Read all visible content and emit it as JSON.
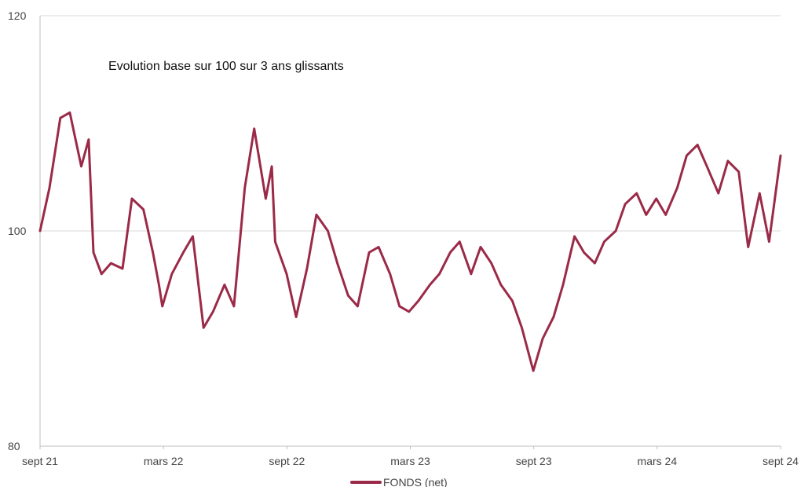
{
  "chart_data": {
    "type": "line",
    "title": "Evolution base sur 100 sur 3 ans glissants",
    "xlabel": "",
    "ylabel": "",
    "ylim": [
      80,
      120
    ],
    "yticks": [
      "80",
      "100",
      "120"
    ],
    "x_ticks": [
      "sept 21",
      "mars 22",
      "sept 22",
      "mars 23",
      "sept 23",
      "mars 24",
      "sept 24"
    ],
    "x_range": [
      "2021-09",
      "2024-09"
    ],
    "grid": true,
    "legend": "bottom-center",
    "colors": {
      "series": "#9B2A48",
      "grid": "#d9d9d9",
      "axis": "#bfbfbf"
    },
    "series": [
      {
        "name": "FONDS (net)",
        "x": [
          "2021-09-01",
          "2021-09-15",
          "2021-10-01",
          "2021-10-15",
          "2021-11-01",
          "2021-11-12",
          "2021-11-19",
          "2021-12-01",
          "2021-12-15",
          "2022-01-01",
          "2022-01-15",
          "2022-02-01",
          "2022-02-15",
          "2022-02-24",
          "2022-03-01",
          "2022-03-15",
          "2022-04-01",
          "2022-04-15",
          "2022-05-01",
          "2022-05-15",
          "2022-06-01",
          "2022-06-15",
          "2022-07-01",
          "2022-07-15",
          "2022-08-01",
          "2022-08-10",
          "2022-08-15",
          "2022-09-01",
          "2022-09-15",
          "2022-10-01",
          "2022-10-15",
          "2022-11-01",
          "2022-11-15",
          "2022-12-01",
          "2022-12-15",
          "2023-01-01",
          "2023-01-15",
          "2023-02-01",
          "2023-02-15",
          "2023-03-01",
          "2023-03-15",
          "2023-04-01",
          "2023-04-15",
          "2023-05-01",
          "2023-05-15",
          "2023-06-01",
          "2023-06-15",
          "2023-07-01",
          "2023-07-15",
          "2023-08-01",
          "2023-08-15",
          "2023-09-01",
          "2023-09-15",
          "2023-10-01",
          "2023-10-15",
          "2023-11-01",
          "2023-11-15",
          "2023-12-01",
          "2023-12-15",
          "2024-01-01",
          "2024-01-15",
          "2024-02-01",
          "2024-02-15",
          "2024-03-01",
          "2024-03-15",
          "2024-04-01",
          "2024-04-15",
          "2024-05-01",
          "2024-05-15",
          "2024-06-01",
          "2024-06-15",
          "2024-07-01",
          "2024-07-15",
          "2024-08-01",
          "2024-08-15",
          "2024-09-01"
        ],
        "values": [
          100.0,
          104.0,
          110.5,
          111.0,
          106.0,
          108.5,
          98.0,
          96.0,
          97.0,
          96.5,
          103.0,
          102.0,
          98.0,
          95.0,
          93.0,
          96.0,
          98.0,
          99.5,
          91.0,
          92.5,
          95.0,
          93.0,
          104.0,
          109.5,
          103.0,
          106.0,
          99.0,
          96.0,
          92.0,
          96.5,
          101.5,
          100.0,
          97.0,
          94.0,
          93.0,
          98.0,
          98.5,
          96.0,
          93.0,
          92.5,
          93.5,
          95.0,
          96.0,
          98.0,
          99.0,
          96.0,
          98.5,
          97.0,
          95.0,
          93.5,
          91.0,
          87.0,
          90.0,
          92.0,
          95.0,
          99.5,
          98.0,
          97.0,
          99.0,
          100.0,
          102.5,
          103.5,
          101.5,
          103.0,
          101.5,
          104.0,
          107.0,
          108.0,
          106.0,
          103.5,
          106.5,
          105.5,
          98.5,
          103.5,
          99.0,
          107.0
        ]
      }
    ]
  }
}
